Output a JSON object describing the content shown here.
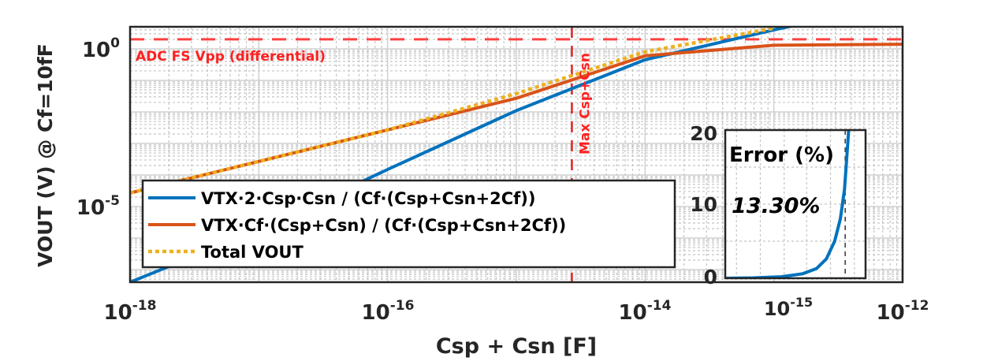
{
  "chart_data": [
    {
      "type": "line",
      "xlabel": "Csp + Csn [F]",
      "ylabel": "VOUT (V) @ Cf=10fF",
      "x_scale": "log",
      "y_scale": "log",
      "xlim": [
        1e-18,
        1e-12
      ],
      "ylim": [
        4e-08,
        5
      ],
      "grid": true,
      "x_ticks": [
        {
          "base": "10",
          "exp": "-18"
        },
        {
          "base": "10",
          "exp": "-16"
        },
        {
          "base": "10",
          "exp": "-14"
        },
        {
          "base": "10",
          "exp": "-12"
        }
      ],
      "y_ticks": [
        {
          "base": "10",
          "exp": "0",
          "value": 1
        },
        {
          "base": "10",
          "exp": "-5",
          "value": 1e-05
        }
      ],
      "legend_position": "bottom-left",
      "series": [
        {
          "name": "VTX·2·Csp·Csn / (Cf·(Csp+Csn+2Cf))",
          "color": "#0072BD",
          "x": [
            1e-18,
            1e-17,
            1e-16,
            1e-15,
            1e-14,
            1e-13,
            1e-12
          ],
          "y": [
            4e-08,
            1.8e-06,
            0.00015,
            0.011,
            0.45,
            4,
            30
          ]
        },
        {
          "name": "VTX·Cf·(Csp+Csn) / (Cf·(Csp+Csn+2Cf))",
          "color": "#D95319",
          "x": [
            1e-18,
            1e-17,
            1e-16,
            1e-15,
            1e-14,
            1e-13,
            1e-12
          ],
          "y": [
            2.7e-05,
            0.00027,
            0.0027,
            0.027,
            0.6,
            1.3,
            1.4
          ]
        },
        {
          "name": "Total VOUT",
          "color": "#EDB120",
          "style": "dotted",
          "x": [
            1e-18,
            1e-17,
            1e-16,
            1e-15,
            1e-14,
            1e-13
          ],
          "y": [
            2.7e-05,
            0.00027,
            0.0027,
            0.038,
            0.8,
            4.5
          ]
        }
      ],
      "annotations": [
        {
          "text": "ADC FS Vpp (differential)",
          "y": 2,
          "orientation": "horizontal",
          "color": "#ff2020"
        },
        {
          "text": "Max Csp+Csn",
          "x": 2.7e-15,
          "orientation": "vertical",
          "color": "#ff2020"
        }
      ]
    },
    {
      "type": "line",
      "title": "Error (%)",
      "ylim": [
        0,
        20
      ],
      "y_ticks": [
        "0",
        "10",
        "20"
      ],
      "x_scale": "log",
      "x_tick_labels": [
        {
          "base": "10",
          "exp": "-15"
        }
      ],
      "grid": true,
      "series": [
        {
          "color": "#0072BD",
          "x_frac": [
            0,
            0.2,
            0.4,
            0.55,
            0.65,
            0.72,
            0.78,
            0.82,
            0.85,
            0.88
          ],
          "y": [
            0,
            0.05,
            0.2,
            0.6,
            1.3,
            2.6,
            5,
            8,
            12,
            20
          ]
        }
      ],
      "marker_line": {
        "label": "13.30%",
        "value": 13.3
      }
    }
  ]
}
